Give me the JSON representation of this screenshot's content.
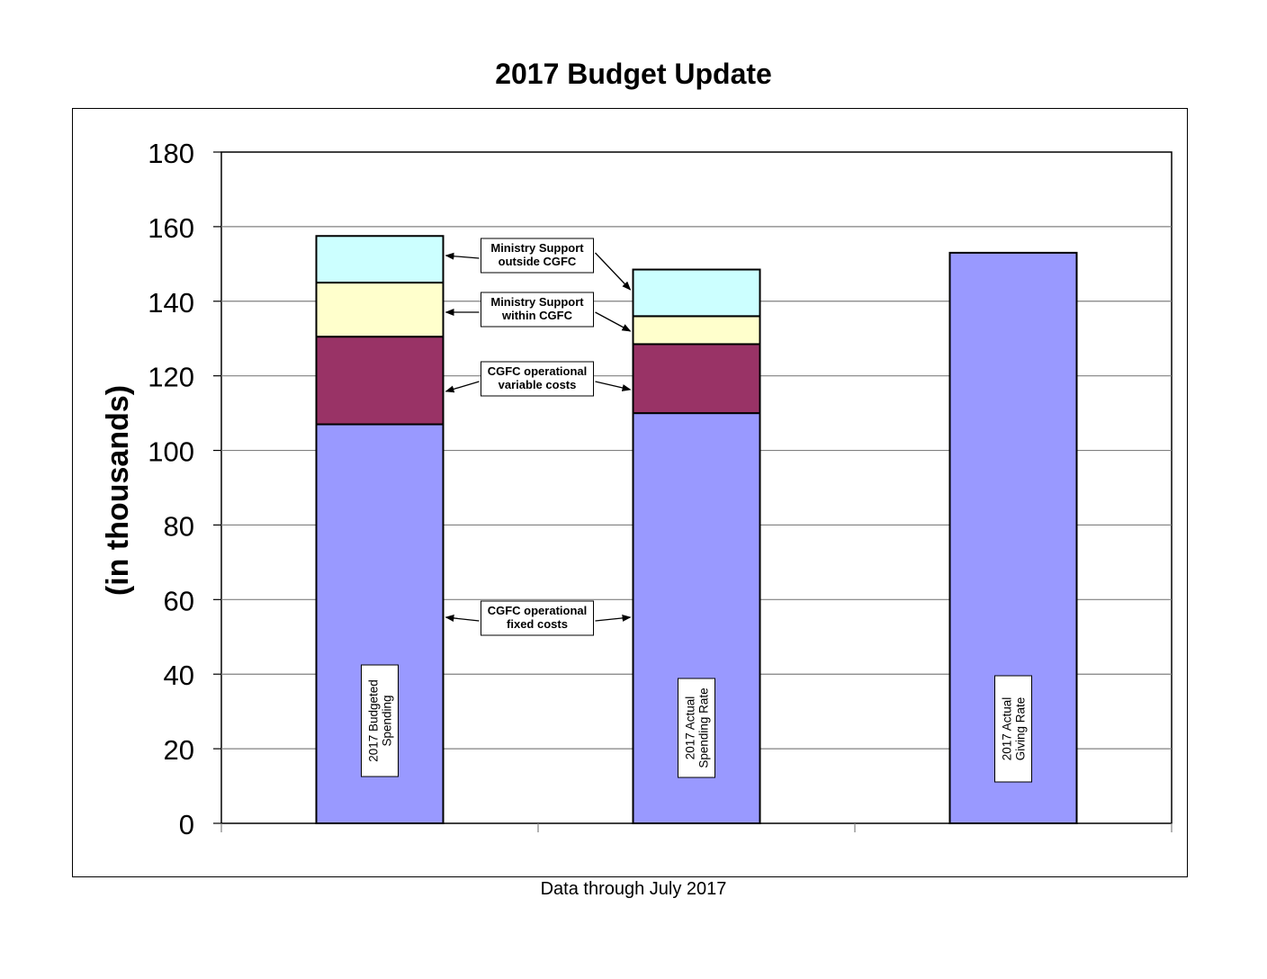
{
  "title": "2017 Budget Update",
  "footer": "Data through July 2017",
  "chart_data": {
    "type": "bar",
    "stacked": true,
    "title": "2017 Budget Update",
    "xlabel": "",
    "ylabel": "(in thousands)",
    "ylim": [
      0,
      180
    ],
    "yticks": [
      0,
      20,
      40,
      60,
      80,
      100,
      120,
      140,
      160,
      180
    ],
    "grid": true,
    "categories": [
      "2017  Budgeted Spending",
      "2017 Actual Spending Rate",
      "2017 Actual Giving Rate"
    ],
    "series": [
      {
        "name": "CGFC operational fixed costs",
        "color": "#9999ff",
        "values": [
          107,
          110,
          153
        ]
      },
      {
        "name": "CGFC operational variable costs",
        "color": "#993366",
        "values": [
          23.5,
          18.5,
          0
        ]
      },
      {
        "name": "Ministry Support within  CGFC",
        "color": "#ffffcc",
        "values": [
          14.5,
          7.5,
          0
        ]
      },
      {
        "name": "Ministry Support outside CGFC",
        "color": "#ccffff",
        "values": [
          12.5,
          12.5,
          0
        ]
      }
    ],
    "bar_labels": [
      [
        "2017  Budgeted",
        "Spending"
      ],
      [
        "2017 Actual",
        "Spending Rate"
      ],
      [
        "2017 Actual",
        "Giving Rate"
      ]
    ],
    "annotations": [
      {
        "series": 3,
        "lines": [
          "Ministry Support",
          "outside CGFC"
        ]
      },
      {
        "series": 2,
        "lines": [
          "Ministry Support",
          "within  CGFC"
        ]
      },
      {
        "series": 1,
        "lines": [
          "CGFC operational",
          "variable costs"
        ]
      },
      {
        "series": 0,
        "lines": [
          "CGFC operational",
          "fixed costs"
        ]
      }
    ]
  }
}
